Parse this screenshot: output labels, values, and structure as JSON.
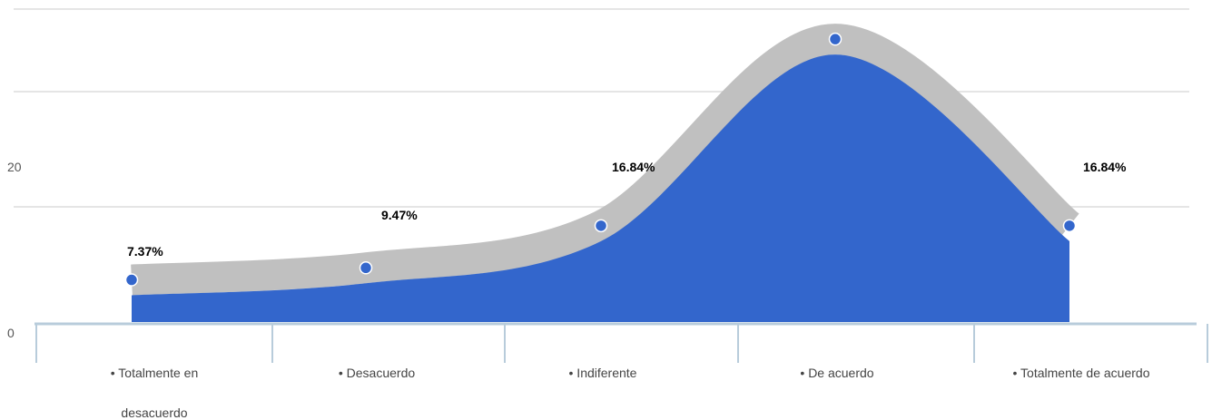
{
  "chart_data": {
    "type": "area",
    "categories": [
      [
        "• Totalmente en",
        "desacuerdo"
      ],
      [
        "• Desacuerdo"
      ],
      [
        "• Indiferente"
      ],
      [
        "• De acuerdo"
      ],
      [
        "• Totalmente de acuerdo"
      ]
    ],
    "values": [
      7,
      9,
      16,
      47,
      16
    ],
    "data_labels": [
      "7.37%",
      "9.47%",
      "16.84%",
      "",
      "16.84%"
    ],
    "y_tick_labels": [
      "0",
      "20"
    ],
    "ylim": [
      0,
      52
    ],
    "grid": true,
    "legend": "none",
    "colors": {
      "area": "#3366cc",
      "band": "#c0c0c0",
      "marker": "#3366cc",
      "marker_outline": "#ffffff",
      "grid": "#e5e5e5",
      "axis": "#b8ccdb"
    }
  }
}
